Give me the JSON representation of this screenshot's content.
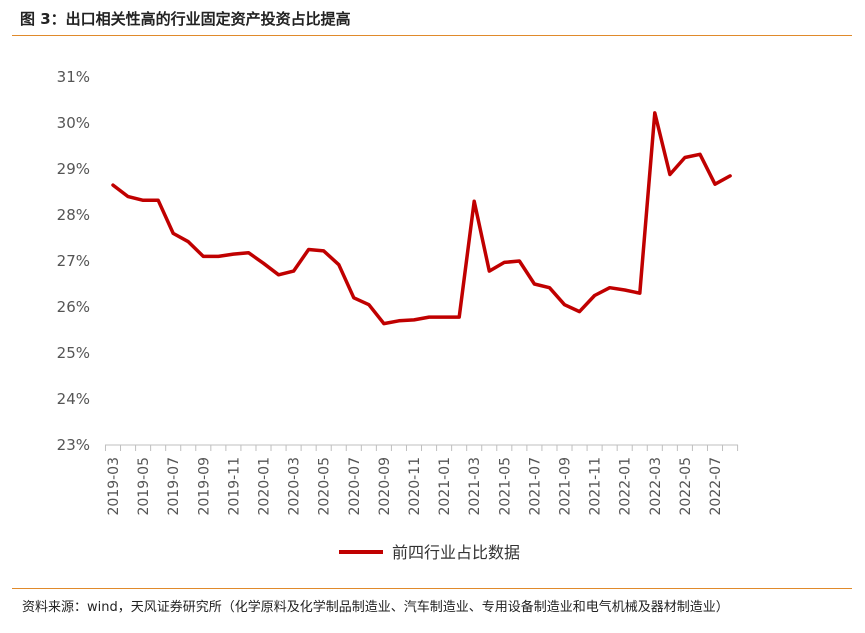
{
  "header": {
    "title": "图 3：出口相关性高的行业固定资产投资占比提高"
  },
  "footer": {
    "source": "资料来源：wind，天风证券研究所（化学原料及化学制品制造业、汽车制造业、专用设备制造业和电气机械及器材制造业）"
  },
  "chart_data": {
    "type": "line",
    "title": "",
    "xlabel": "",
    "ylabel": "",
    "ylim": [
      23,
      31
    ],
    "yticks": [
      "23%",
      "24%",
      "25%",
      "26%",
      "27%",
      "28%",
      "29%",
      "30%",
      "31%"
    ],
    "grid": false,
    "legend_position": "bottom-center",
    "line_color": "#c00000",
    "x": [
      "2019-03",
      "2019-04",
      "2019-05",
      "2019-06",
      "2019-07",
      "2019-08",
      "2019-09",
      "2019-10",
      "2019-11",
      "2019-12",
      "2020-01",
      "2020-02",
      "2020-03",
      "2020-04",
      "2020-05",
      "2020-06",
      "2020-07",
      "2020-08",
      "2020-09",
      "2020-10",
      "2020-11",
      "2020-12",
      "2021-01",
      "2021-02",
      "2021-03",
      "2021-04",
      "2021-05",
      "2021-06",
      "2021-07",
      "2021-08",
      "2021-09",
      "2021-10",
      "2021-11",
      "2021-12",
      "2022-01",
      "2022-02",
      "2022-03",
      "2022-04",
      "2022-05",
      "2022-06",
      "2022-07",
      "2022-08"
    ],
    "xtick_labels": [
      "2019-03",
      "2019-05",
      "2019-07",
      "2019-09",
      "2019-11",
      "2020-01",
      "2020-03",
      "2020-05",
      "2020-07",
      "2020-09",
      "2020-11",
      "2021-01",
      "2021-03",
      "2021-05",
      "2021-07",
      "2021-09",
      "2021-11",
      "2022-01",
      "2022-03",
      "2022-05",
      "2022-07"
    ],
    "series": [
      {
        "name": "前四行业占比数据",
        "values": [
          28.65,
          28.4,
          28.32,
          28.32,
          27.6,
          27.42,
          27.1,
          27.1,
          27.15,
          27.18,
          26.95,
          26.7,
          26.78,
          27.25,
          27.22,
          26.92,
          26.2,
          26.05,
          25.64,
          25.7,
          25.72,
          25.78,
          25.78,
          25.78,
          28.3,
          26.78,
          26.97,
          27.0,
          26.5,
          26.42,
          26.05,
          25.9,
          26.25,
          26.42,
          26.37,
          26.3,
          30.22,
          28.88,
          29.25,
          29.32,
          28.67,
          28.85
        ]
      }
    ]
  }
}
